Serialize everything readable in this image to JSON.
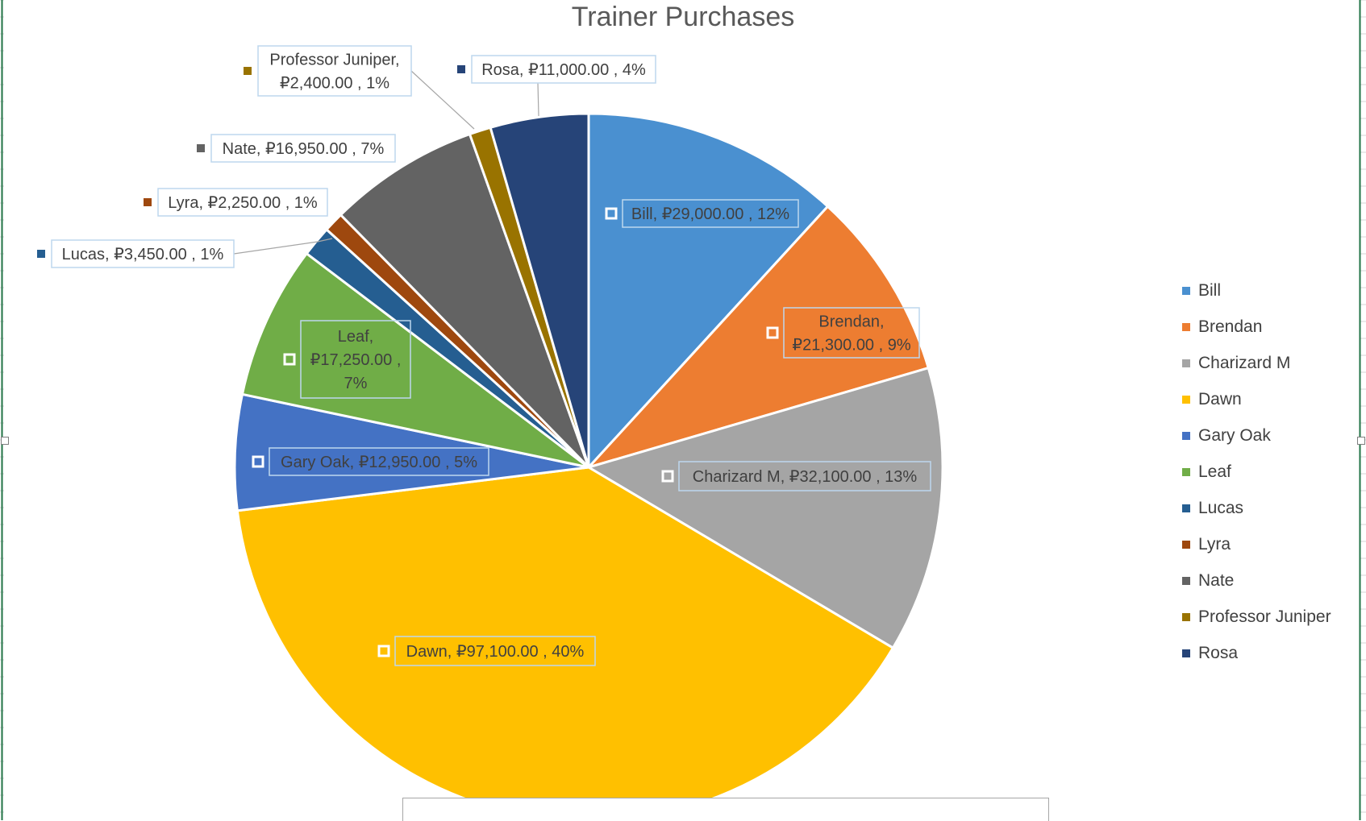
{
  "chart_data": {
    "type": "pie",
    "title": "Trainer Purchases",
    "legend_position": "right",
    "categories": [
      "Bill",
      "Brendan",
      "Charizard M",
      "Dawn",
      "Gary Oak",
      "Leaf",
      "Lucas",
      "Lyra",
      "Nate",
      "Professor Juniper",
      "Rosa"
    ],
    "values": [
      29000,
      21300,
      32100,
      97100,
      12950,
      17250,
      3450,
      2250,
      16950,
      2400,
      11000
    ],
    "value_labels": [
      "₽29,000.00",
      "₽21,300.00",
      "₽32,100.00",
      "₽97,100.00",
      "₽12,950.00",
      "₽17,250.00",
      "₽3,450.00",
      "₽2,250.00",
      "₽16,950.00",
      "₽2,400.00",
      "₽11,000.00"
    ],
    "percent_labels": [
      "12%",
      "9%",
      "13%",
      "40%",
      "5%",
      "7%",
      "1%",
      "1%",
      "7%",
      "1%",
      "4%"
    ],
    "colors": [
      "#4A90D0",
      "#ED7D31",
      "#A5A5A5",
      "#FFC000",
      "#4472C4",
      "#70AD47",
      "#255E91",
      "#9E480E",
      "#636363",
      "#997300",
      "#264478"
    ]
  }
}
